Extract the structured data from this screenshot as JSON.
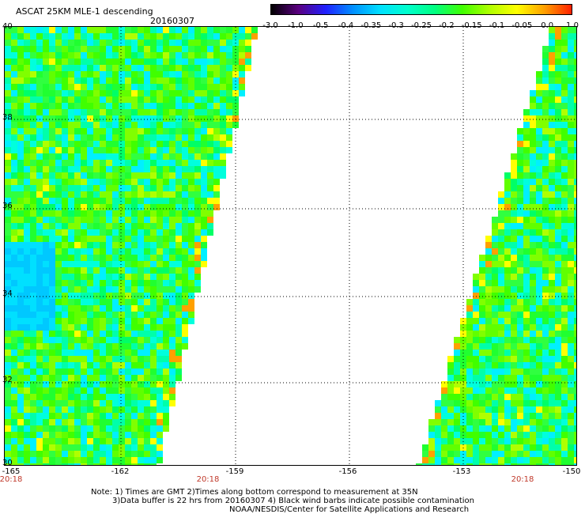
{
  "header": {
    "title": "ASCAT 25KM MLE-1 descending",
    "date": "20160307"
  },
  "colorbar": {
    "labels": [
      "-3.0",
      "-1.0",
      "-0.5",
      "-0.4",
      "-0.35",
      "-0.3",
      "-0.25",
      "-0.2",
      "-0.15",
      "-0.1",
      "-0.05",
      "0.0",
      "1.0"
    ],
    "colors": [
      "#000000",
      "#5a0080",
      "#2020ff",
      "#0090ff",
      "#00e0ff",
      "#00ffcc",
      "#00ff80",
      "#40ff00",
      "#b0ff00",
      "#ffff00",
      "#ffa000",
      "#ff2000"
    ]
  },
  "map": {
    "lat_labels": [
      "40",
      "38",
      "36",
      "34",
      "32",
      "30"
    ],
    "lon_labels": [
      "-165",
      "-162",
      "-159",
      "-156",
      "-153",
      "-150"
    ],
    "pass_times": [
      "20:18",
      "20:18",
      "20:18"
    ]
  },
  "notes": {
    "line1": "Note: 1) Times are GMT 2)Times along bottom correspond to measurement at 35N",
    "line2": "3)Data buffer is 22 hrs from 20160307 4) Black wind barbs indicate possible contamination",
    "line3": "NOAA/NESDIS/Center for Satellite Applications and Research"
  }
}
